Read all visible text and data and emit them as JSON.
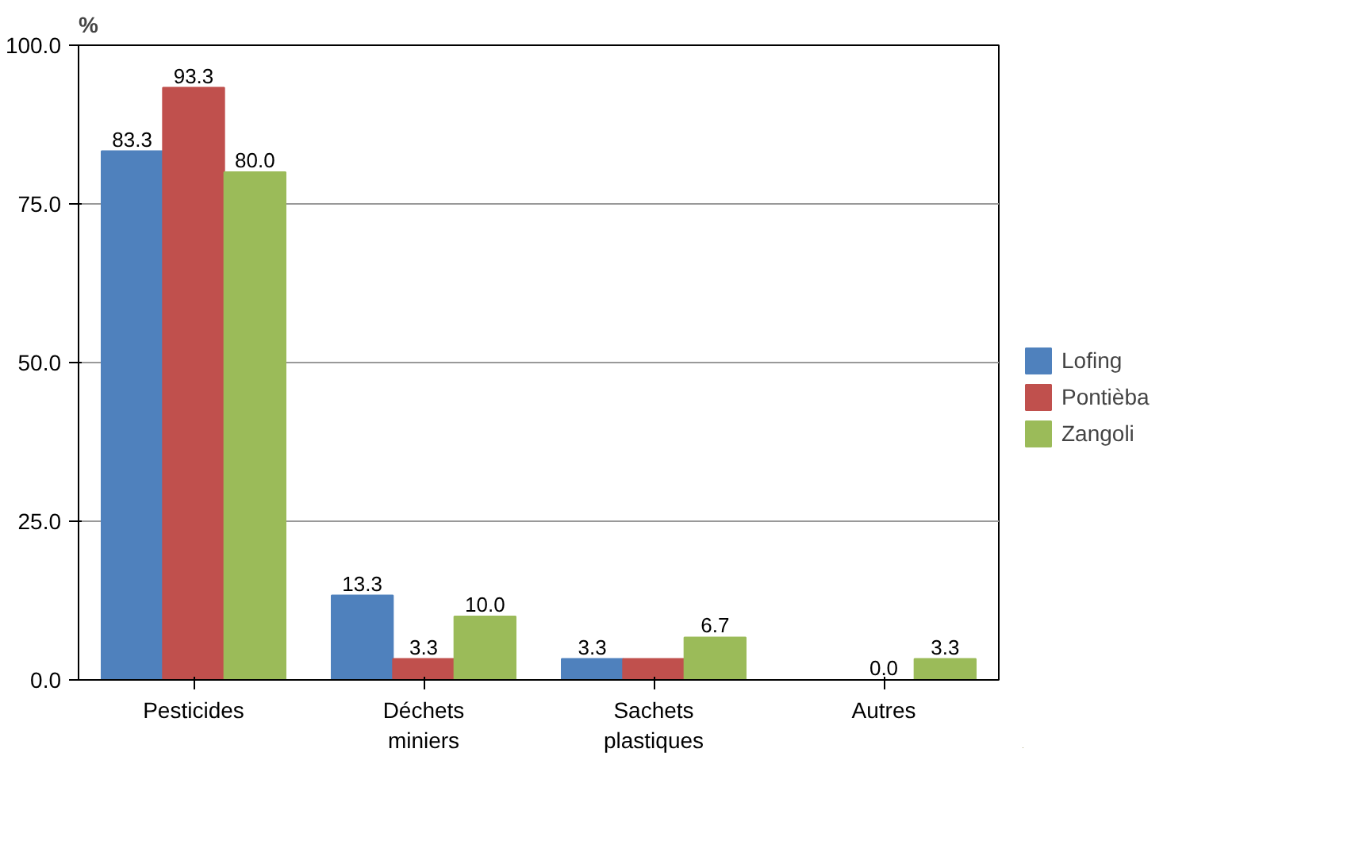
{
  "chart_data": {
    "type": "bar",
    "ylabel": "%",
    "categories": [
      "Pesticides",
      "Déchets\nminiers",
      "Sachets\nplastiques",
      "Autres"
    ],
    "series": [
      {
        "name": "Lofing",
        "color": "#4f81bd",
        "values": [
          83.3,
          13.3,
          3.3,
          0.0
        ],
        "value_labels": [
          "83.3",
          "13.3",
          "3.3",
          null
        ]
      },
      {
        "name": "Pontièba",
        "color": "#c0504d",
        "values": [
          93.3,
          3.3,
          3.3,
          0.0
        ],
        "value_labels": [
          "93.3",
          "3.3",
          null,
          "0.0"
        ]
      },
      {
        "name": "Zangoli",
        "color": "#9bbb59",
        "values": [
          80.0,
          10.0,
          6.7,
          3.3
        ],
        "value_labels": [
          "80.0",
          "10.0",
          "6.7",
          "3.3"
        ]
      }
    ],
    "ylim": [
      0,
      100
    ],
    "yticks": [
      {
        "value": 0,
        "label": "0.0"
      },
      {
        "value": 25,
        "label": "25.0"
      },
      {
        "value": 50,
        "label": "50.0"
      },
      {
        "value": 75,
        "label": "75.0"
      },
      {
        "value": 100,
        "label": "100.0"
      }
    ],
    "grid": "y",
    "legend": "right"
  }
}
